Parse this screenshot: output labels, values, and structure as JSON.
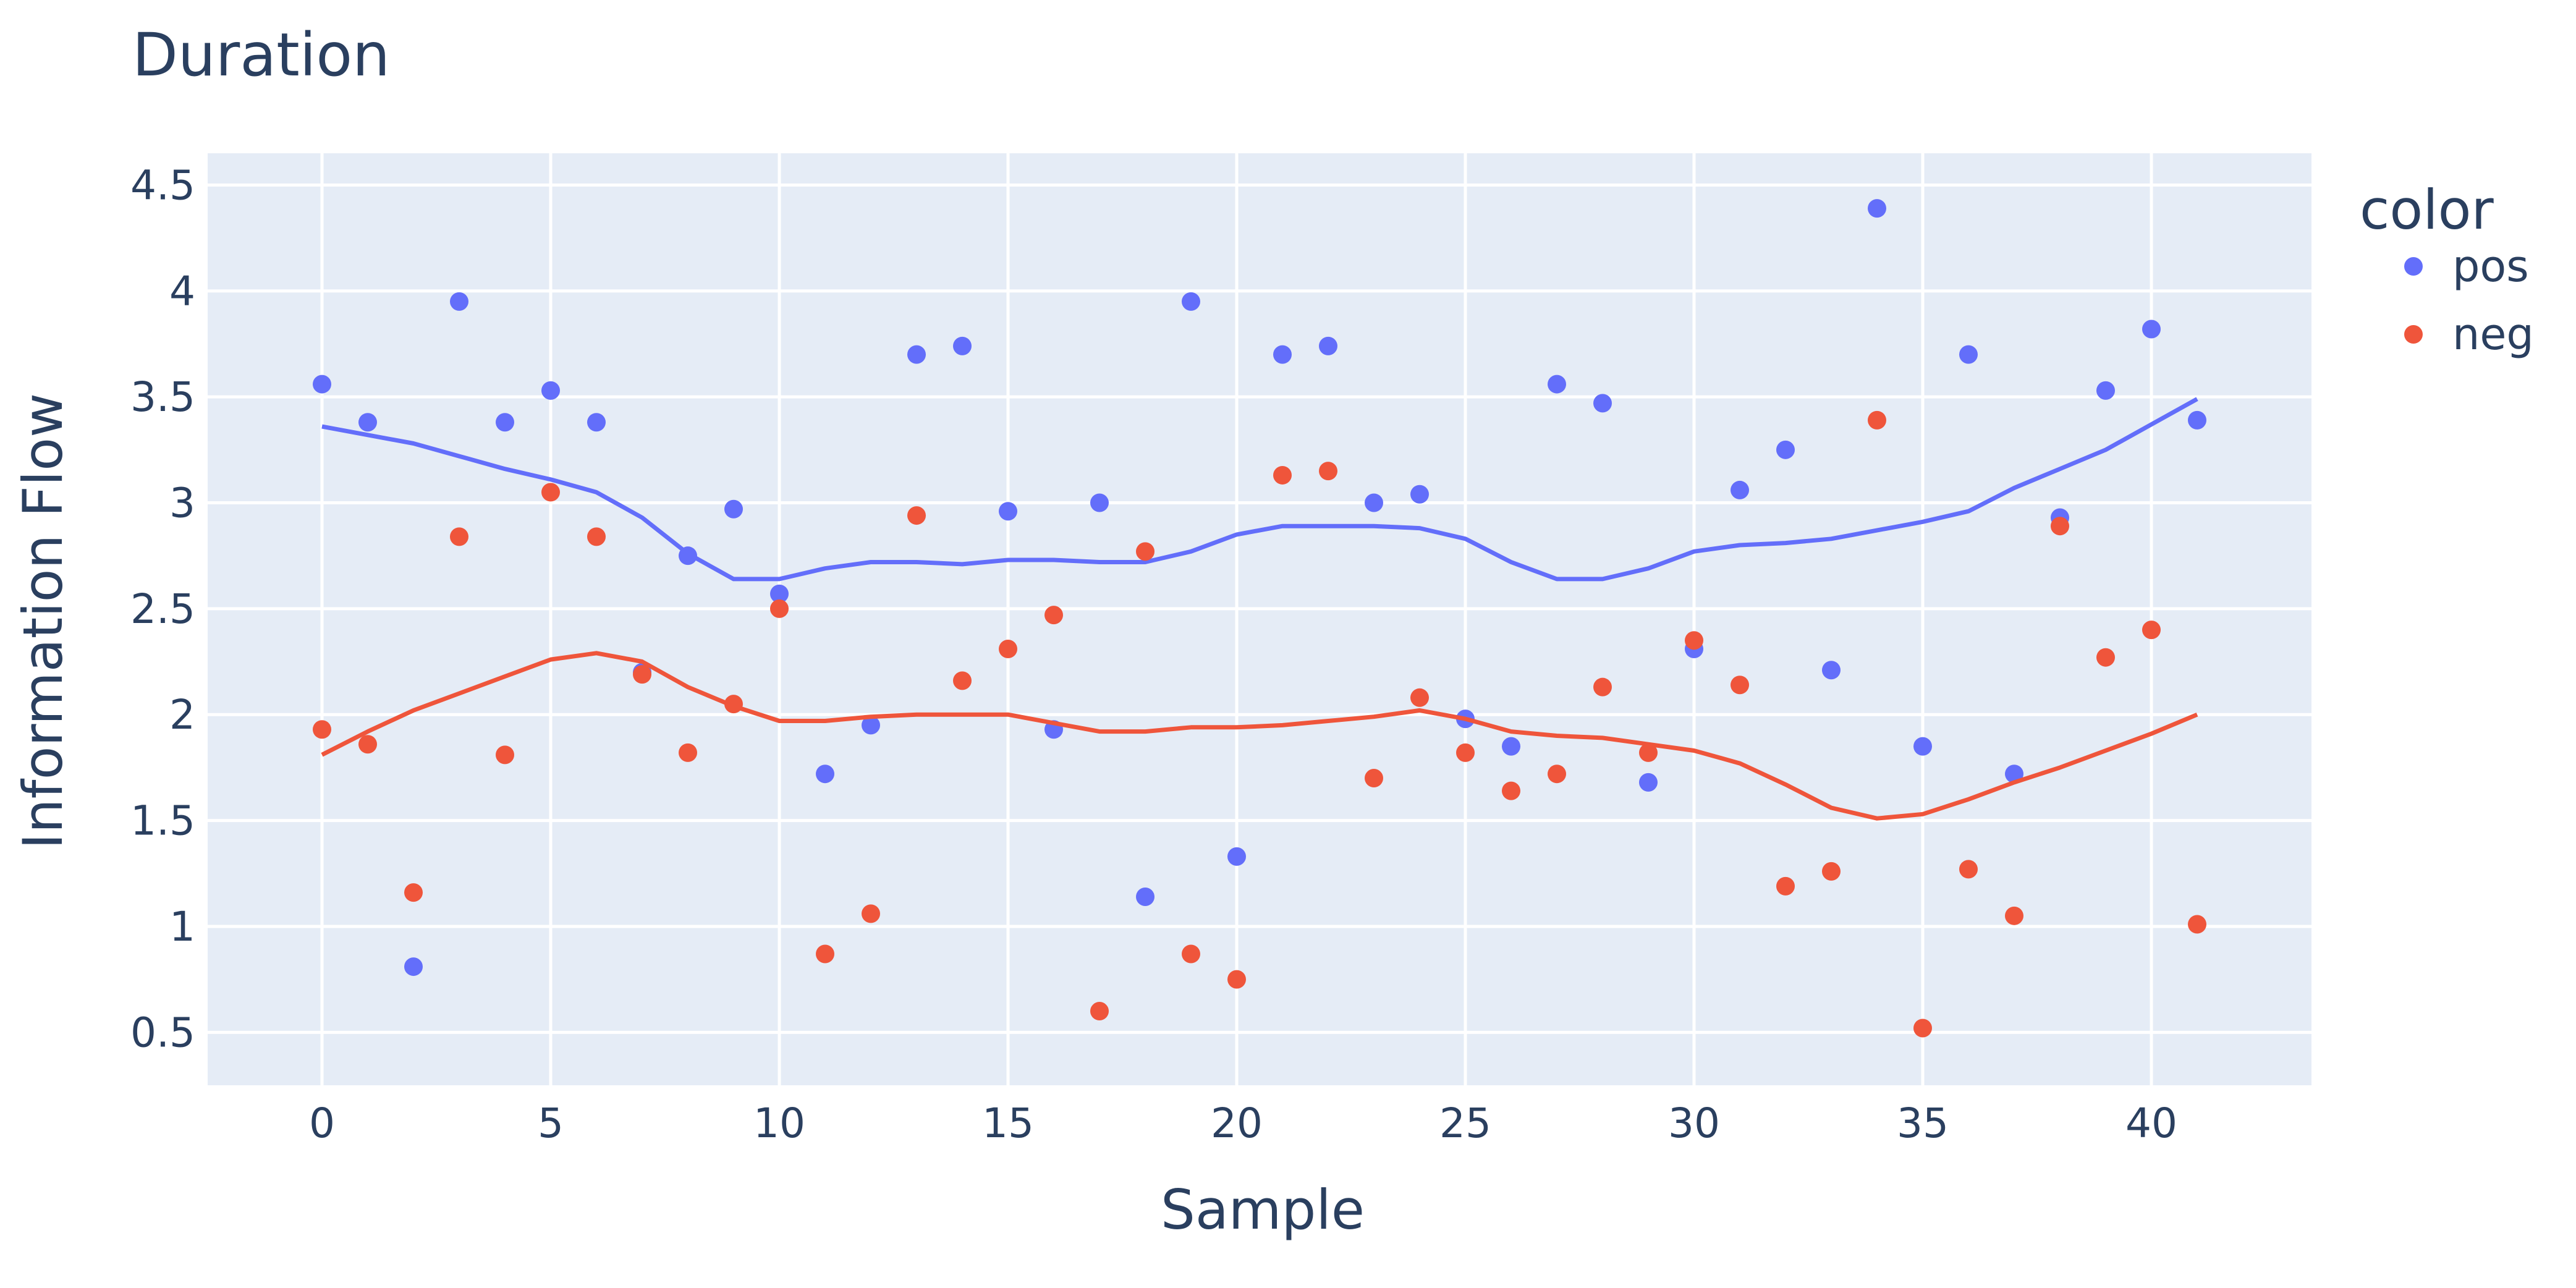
{
  "chart_data": {
    "type": "scatter",
    "title": "Duration",
    "xlabel": "Sample",
    "ylabel": "Information Flow",
    "xlim": [
      -2.5,
      43.5
    ],
    "ylim": [
      0.25,
      4.65
    ],
    "xticks": [
      0,
      5,
      10,
      15,
      20,
      25,
      30,
      35,
      40
    ],
    "xtick_labels": [
      "0",
      "5",
      "10",
      "15",
      "20",
      "25",
      "30",
      "35",
      "40"
    ],
    "yticks": [
      0.5,
      1,
      1.5,
      2,
      2.5,
      3,
      3.5,
      4,
      4.5
    ],
    "ytick_labels": [
      "0.5",
      "1",
      "1.5",
      "2",
      "2.5",
      "3",
      "3.5",
      "4",
      "4.5"
    ],
    "grid": true,
    "legend_title": "color",
    "legend_position": "right",
    "series": [
      {
        "name": "pos",
        "color": "#636efa",
        "x": [
          0,
          1,
          2,
          3,
          4,
          5,
          6,
          7,
          8,
          9,
          10,
          11,
          12,
          13,
          14,
          15,
          16,
          17,
          18,
          19,
          20,
          21,
          22,
          23,
          24,
          25,
          26,
          27,
          28,
          29,
          30,
          31,
          32,
          33,
          34,
          35,
          36,
          37,
          38,
          39,
          40,
          41
        ],
        "y": [
          3.56,
          3.38,
          0.81,
          3.95,
          3.38,
          3.53,
          3.38,
          2.2,
          2.75,
          2.97,
          2.57,
          1.72,
          1.95,
          3.7,
          3.74,
          2.96,
          1.93,
          3.0,
          1.14,
          3.95,
          1.33,
          3.7,
          3.74,
          3.0,
          3.04,
          1.98,
          1.85,
          3.56,
          3.47,
          1.68,
          2.31,
          3.06,
          3.25,
          2.21,
          4.39,
          1.85,
          3.7,
          1.72,
          2.93,
          3.53,
          3.82,
          3.39
        ],
        "trend": [
          3.36,
          3.32,
          3.28,
          3.22,
          3.16,
          3.11,
          3.05,
          2.93,
          2.76,
          2.64,
          2.64,
          2.69,
          2.72,
          2.72,
          2.71,
          2.73,
          2.73,
          2.72,
          2.72,
          2.77,
          2.85,
          2.89,
          2.89,
          2.89,
          2.88,
          2.83,
          2.72,
          2.64,
          2.64,
          2.69,
          2.77,
          2.8,
          2.81,
          2.83,
          2.87,
          2.91,
          2.96,
          3.07,
          3.16,
          3.25,
          3.37,
          3.49
        ]
      },
      {
        "name": "neg",
        "color": "#ef553b",
        "x": [
          0,
          1,
          2,
          3,
          4,
          5,
          6,
          7,
          8,
          9,
          10,
          11,
          12,
          13,
          14,
          15,
          16,
          17,
          18,
          19,
          20,
          21,
          22,
          23,
          24,
          25,
          26,
          27,
          28,
          29,
          30,
          31,
          32,
          33,
          34,
          35,
          36,
          37,
          38,
          39,
          40,
          41
        ],
        "y": [
          1.93,
          1.86,
          1.16,
          2.84,
          1.81,
          3.05,
          2.84,
          2.19,
          1.82,
          2.05,
          2.5,
          0.87,
          1.06,
          2.94,
          2.16,
          2.31,
          2.47,
          0.6,
          2.77,
          0.87,
          0.75,
          3.13,
          3.15,
          1.7,
          2.08,
          1.82,
          1.64,
          1.72,
          2.13,
          1.82,
          2.35,
          2.14,
          1.19,
          1.26,
          3.39,
          0.52,
          1.27,
          1.05,
          2.89,
          2.27,
          2.4,
          1.01
        ],
        "trend": [
          1.81,
          1.92,
          2.02,
          2.1,
          2.18,
          2.26,
          2.29,
          2.25,
          2.13,
          2.04,
          1.97,
          1.97,
          1.99,
          2.0,
          2.0,
          2.0,
          1.96,
          1.92,
          1.92,
          1.94,
          1.94,
          1.95,
          1.97,
          1.99,
          2.02,
          1.98,
          1.92,
          1.9,
          1.89,
          1.86,
          1.83,
          1.77,
          1.67,
          1.56,
          1.51,
          1.53,
          1.6,
          1.68,
          1.75,
          1.83,
          1.91,
          2.0
        ]
      }
    ]
  }
}
